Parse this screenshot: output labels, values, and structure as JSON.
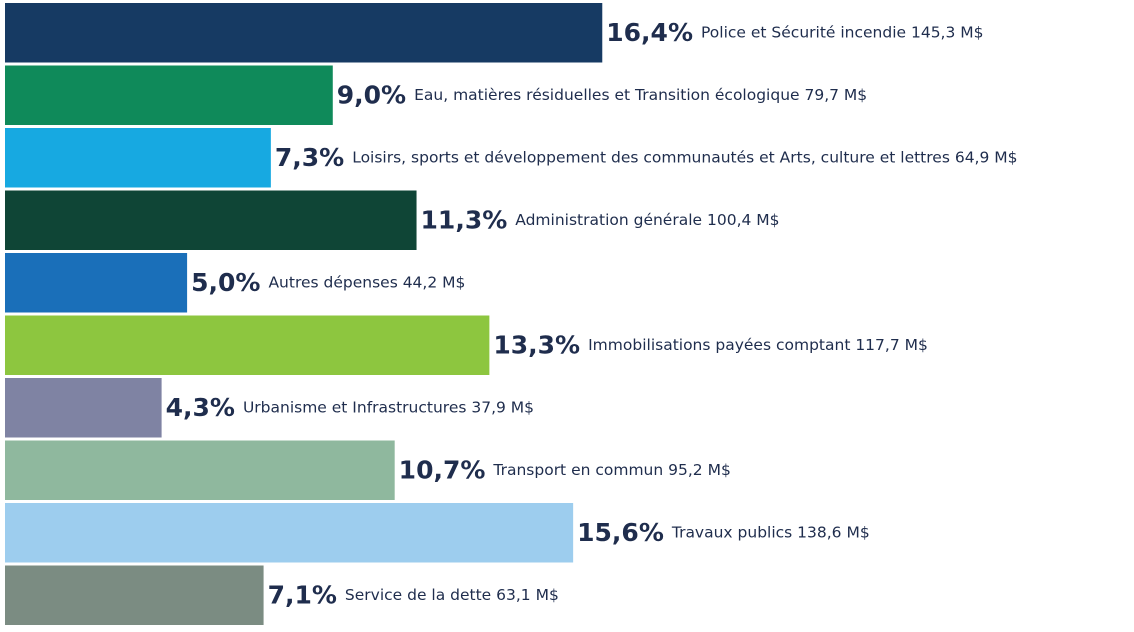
{
  "chart_data": {
    "type": "hbar",
    "categories": [
      "Police et Sécurité incendie 145,3 M$",
      "Eau, matières résiduelles et Transition écologique 79,7 M$",
      "Loisirs, sports et développement des communautés et Arts, culture et lettres 64,9 M$",
      "Administration générale 100,4 M$",
      "Autres dépenses 44,2 M$",
      "Immobilisations payées comptant 117,7 M$",
      "Urbanisme et Infrastructures 37,9 M$",
      "Transport en commun 95,2 M$",
      "Travaux publics 138,6 M$",
      "Service de la dette 63,1 M$"
    ],
    "values": [
      16.4,
      9.0,
      7.3,
      11.3,
      5.0,
      13.3,
      4.3,
      10.7,
      15.6,
      7.1
    ],
    "value_labels": [
      "16,4%",
      "9,0%",
      "7,3%",
      "11,3%",
      "5,0%",
      "13,3%",
      "4,3%",
      "10,7%",
      "15,6%",
      "7,1%"
    ],
    "colors": [
      "#163a63",
      "#0f8a5a",
      "#17a9e1",
      "#0f4536",
      "#1a6fb9",
      "#8dc63f",
      "#7f83a3",
      "#8fb89e",
      "#9dcdee",
      "#7b8c82"
    ],
    "xlim": [
      0,
      31
    ]
  }
}
